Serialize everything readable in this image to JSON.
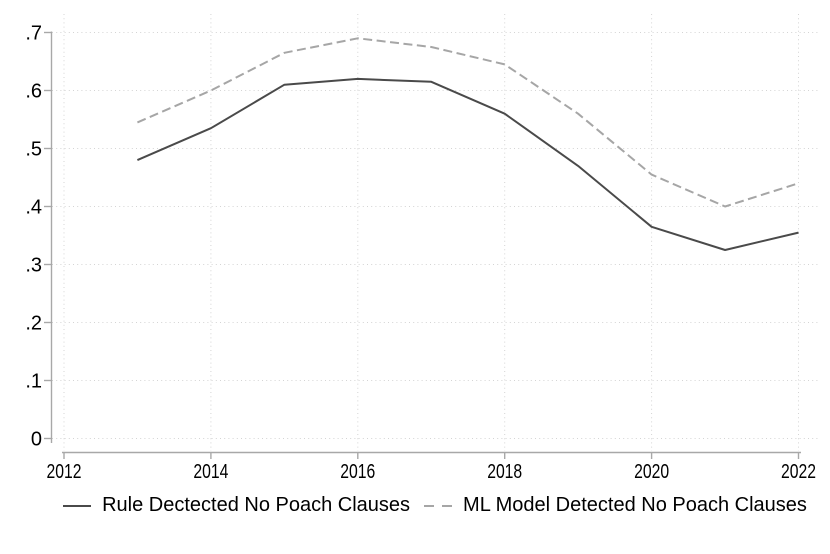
{
  "chart_data": {
    "type": "line",
    "x": [
      2013,
      2014,
      2015,
      2016,
      2017,
      2018,
      2019,
      2020,
      2021,
      2022
    ],
    "series": [
      {
        "name": "Rule Dectected No Poach Clauses",
        "values": [
          0.48,
          0.535,
          0.61,
          0.62,
          0.615,
          0.56,
          0.47,
          0.365,
          0.325,
          0.355
        ],
        "style": "solid",
        "color": "#4a4a4a"
      },
      {
        "name": "ML Model Detected No Poach Clauses",
        "values": [
          0.545,
          0.6,
          0.665,
          0.69,
          0.675,
          0.645,
          0.56,
          0.455,
          0.4,
          0.44
        ],
        "style": "dashed",
        "color": "#a6a6a6"
      }
    ],
    "title": "",
    "xlabel": "",
    "ylabel": "",
    "xlim": [
      2012,
      2022
    ],
    "ylim": [
      0,
      0.7
    ],
    "x_ticks": {
      "values": [
        2012,
        2014,
        2016,
        2018,
        2020,
        2022
      ],
      "labels": [
        "2012",
        "2014",
        "2016",
        "2018",
        "2020",
        "2022"
      ]
    },
    "y_ticks": {
      "values": [
        0,
        0.1,
        0.2,
        0.3,
        0.4,
        0.5,
        0.6,
        0.7
      ],
      "labels": [
        "0",
        ".1",
        ".2",
        ".3",
        ".4",
        ".5",
        ".6",
        ".7"
      ]
    },
    "grid": true,
    "grid_style": "dotted",
    "legend_position": "bottom"
  },
  "colors": {
    "axis": "#a8a8a8",
    "grid": "#d4d4d4",
    "tick_label": "#000000",
    "background": "#ffffff"
  }
}
